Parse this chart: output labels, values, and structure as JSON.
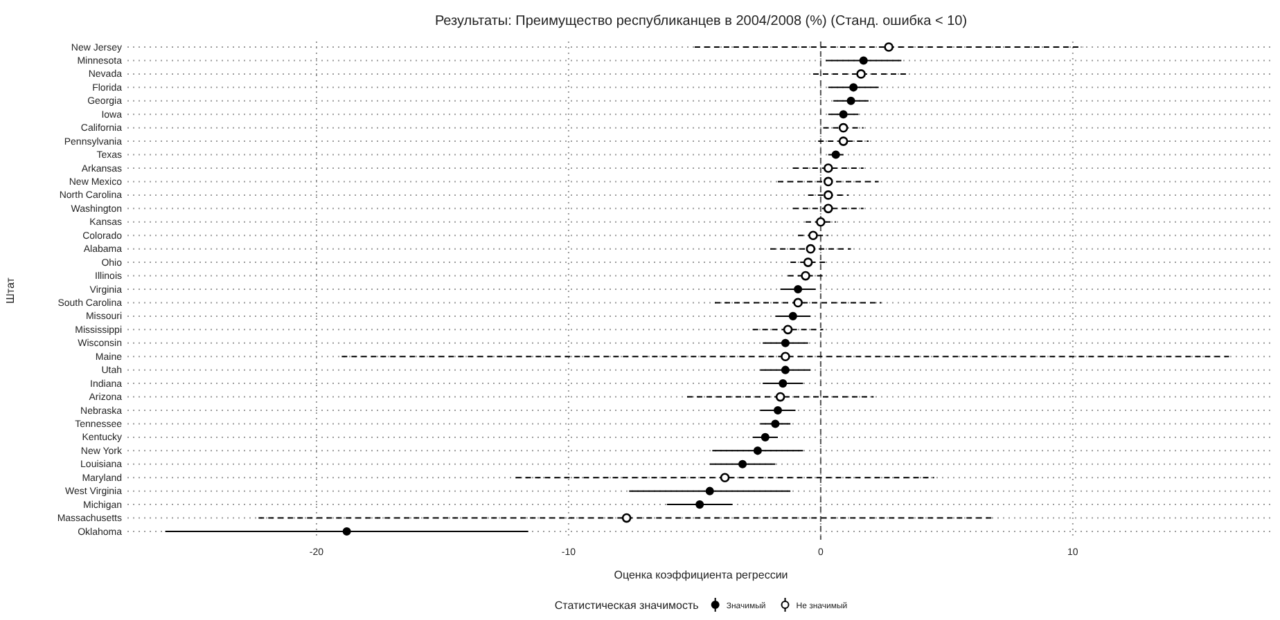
{
  "chart_data": {
    "type": "scatter",
    "title": "Результаты: Преимущество республиканцев в 2004/2008 (%) (Станд. ошибка < 10)",
    "xlabel": "Оценка коэффициента регрессии",
    "ylabel": "Штат",
    "legend_title": "Статистическая значимость",
    "orientation": "horizontal",
    "categories": [
      "New Jersey",
      "Minnesota",
      "Nevada",
      "Florida",
      "Georgia",
      "Iowa",
      "California",
      "Pennsylvania",
      "Texas",
      "Arkansas",
      "New Mexico",
      "North Carolina",
      "Washington",
      "Kansas",
      "Colorado",
      "Alabama",
      "Ohio",
      "Illinois",
      "Virginia",
      "South Carolina",
      "Missouri",
      "Mississippi",
      "Wisconsin",
      "Maine",
      "Utah",
      "Indiana",
      "Arizona",
      "Nebraska",
      "Tennessee",
      "Kentucky",
      "New York",
      "Louisiana",
      "Maryland",
      "West Virginia",
      "Michigan",
      "Massachusetts",
      "Oklahoma"
    ],
    "series": [
      {
        "name": "Значимый",
        "color": "#000000",
        "marker": "circle",
        "line_style": "solid",
        "values": [
          null,
          1.7,
          null,
          1.3,
          1.2,
          0.9,
          null,
          null,
          0.6,
          null,
          null,
          null,
          null,
          null,
          null,
          null,
          null,
          null,
          -0.9,
          null,
          -1.1,
          null,
          -1.4,
          null,
          -1.4,
          -1.5,
          null,
          -1.7,
          -1.8,
          -2.2,
          -2.5,
          -3.1,
          null,
          -4.4,
          -4.8,
          null,
          -18.8
        ],
        "errors": [
          null,
          1.5,
          null,
          1.0,
          0.7,
          0.6,
          null,
          null,
          0.3,
          null,
          null,
          null,
          null,
          null,
          null,
          null,
          null,
          null,
          0.7,
          null,
          0.7,
          null,
          0.9,
          null,
          1.0,
          0.8,
          null,
          0.7,
          0.6,
          0.5,
          1.8,
          1.3,
          null,
          3.2,
          1.3,
          null,
          7.2
        ]
      },
      {
        "name": "Не значимый",
        "color": "#000000",
        "marker": "circle",
        "line_style": "dashed",
        "values": [
          2.7,
          null,
          1.6,
          null,
          null,
          null,
          0.9,
          0.9,
          null,
          0.3,
          0.3,
          0.3,
          0.3,
          0.0,
          -0.3,
          -0.4,
          -0.5,
          -0.6,
          null,
          -0.9,
          null,
          -1.3,
          null,
          -1.4,
          null,
          null,
          -1.6,
          null,
          null,
          null,
          null,
          null,
          -3.8,
          null,
          null,
          -7.7,
          null
        ],
        "errors": [
          7.7,
          null,
          1.9,
          null,
          null,
          null,
          0.8,
          1.0,
          null,
          1.4,
          2.0,
          0.8,
          1.4,
          0.6,
          0.6,
          1.6,
          0.7,
          0.7,
          null,
          3.3,
          null,
          1.4,
          null,
          17.6,
          null,
          null,
          3.7,
          null,
          null,
          null,
          null,
          null,
          8.3,
          null,
          null,
          14.6,
          null
        ]
      }
    ],
    "xlim": [
      -27.5,
      18
    ],
    "xticks": [
      -20,
      -10,
      0,
      10
    ],
    "grid": true,
    "legend": "bottom",
    "ref_lines": [
      {
        "axis": "x",
        "value": 0,
        "line_style": "dashed",
        "color": "#555555"
      }
    ]
  }
}
